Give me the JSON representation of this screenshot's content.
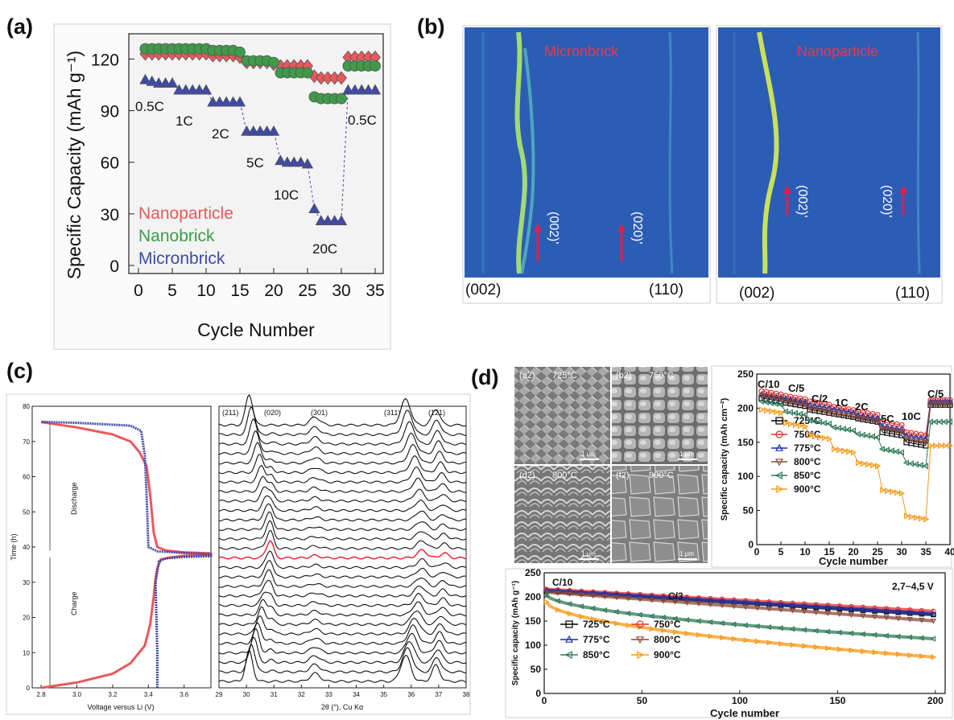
{
  "panels": [
    {
      "label": "(a)"
    },
    {
      "label": "(b)"
    },
    {
      "label": "(c)"
    },
    {
      "label": "(d)"
    }
  ],
  "colors": {
    "red": "#e8595c",
    "green": "#3f9a4a",
    "blue": "#3f4aa8",
    "b725": "#000000",
    "b750": "#e8302a",
    "b775": "#1b2fa8",
    "b800": "#8a4a3a",
    "b850": "#2f7a5a",
    "b900": "#f59a1a"
  },
  "panel_b": {
    "left_title": "Micronbrick",
    "right_title": "Nanoparticle",
    "left_bottom": [
      "(002)",
      "(110)"
    ],
    "right_bottom": [
      "(002)",
      "(110)"
    ],
    "arrow_labels": [
      "(002)'",
      "(020)'"
    ]
  },
  "panel_c": {
    "left_texts": [
      "Discharge",
      "Charge"
    ],
    "peak_labels": [
      "(211)",
      "(020)",
      "(301)",
      "(311)",
      "(121)"
    ]
  },
  "panel_d_sem": {
    "labels": [
      "(a2)",
      "725°C",
      "(b2)",
      "750°C",
      "(d2)",
      "800°C",
      "(f2)",
      "900°C"
    ],
    "scale": "1 μm"
  },
  "chart_data": [
    {
      "id": "a",
      "type": "scatter",
      "xlabel": "Cycle Number",
      "ylabel": "Specific Capacity (mAh g⁻¹)",
      "xlim": [
        0,
        35
      ],
      "ylim": [
        0,
        130
      ],
      "xticks": [
        0,
        5,
        10,
        15,
        20,
        25,
        30,
        35
      ],
      "yticks": [
        0,
        30,
        60,
        90,
        120
      ],
      "legend": [
        "Nanoparticle",
        "Nanobrick",
        "Micronbrick"
      ],
      "annotations": [
        "0.5C",
        "1C",
        "2C",
        "5C",
        "10C",
        "20C",
        "0.5C"
      ],
      "series": [
        {
          "name": "Nanoparticle",
          "color_key": "red",
          "marker": "diamond",
          "x": [
            1,
            2,
            3,
            4,
            5,
            6,
            7,
            8,
            9,
            10,
            11,
            12,
            13,
            14,
            15,
            16,
            17,
            18,
            19,
            20,
            21,
            22,
            23,
            24,
            25,
            26,
            27,
            28,
            29,
            30,
            31,
            32,
            33,
            34,
            35
          ],
          "y": [
            123,
            123,
            123,
            123,
            123,
            123,
            123,
            123,
            123,
            123,
            122,
            122,
            122,
            122,
            121,
            118,
            118,
            118,
            118,
            117,
            116,
            116,
            116,
            116,
            116,
            110,
            109,
            109,
            109,
            109,
            121,
            121,
            121,
            121,
            121
          ]
        },
        {
          "name": "Nanobrick",
          "color_key": "green",
          "marker": "circle",
          "x": [
            1,
            2,
            3,
            4,
            5,
            6,
            7,
            8,
            9,
            10,
            11,
            12,
            13,
            14,
            15,
            16,
            17,
            18,
            19,
            20,
            21,
            22,
            23,
            24,
            25,
            26,
            27,
            28,
            29,
            30,
            31,
            32,
            33,
            34,
            35
          ],
          "y": [
            126,
            126,
            126,
            126,
            126,
            126,
            126,
            126,
            126,
            126,
            125,
            125,
            125,
            125,
            124,
            119,
            119,
            119,
            119,
            118,
            112,
            112,
            112,
            112,
            112,
            98,
            97,
            97,
            97,
            97,
            116,
            116,
            116,
            116,
            116
          ]
        },
        {
          "name": "Micronbrick",
          "color_key": "blue",
          "marker": "triangle",
          "x": [
            1,
            2,
            3,
            4,
            5,
            6,
            7,
            8,
            9,
            10,
            11,
            12,
            13,
            14,
            15,
            16,
            17,
            18,
            19,
            20,
            21,
            22,
            23,
            24,
            25,
            26,
            27,
            28,
            29,
            30,
            31,
            32,
            33,
            34,
            35
          ],
          "y": [
            108,
            107,
            106,
            106,
            106,
            102,
            102,
            102,
            102,
            102,
            95,
            95,
            95,
            95,
            95,
            78,
            78,
            78,
            78,
            78,
            61,
            60,
            60,
            60,
            59,
            33,
            26,
            26,
            26,
            26,
            102,
            102,
            102,
            102,
            102
          ]
        }
      ]
    },
    {
      "id": "c_left",
      "type": "line",
      "xlabel": "Voltage versus Li (V)",
      "ylabel": "Time (h)",
      "xlim": [
        2.75,
        3.75
      ],
      "ylim": [
        0,
        80
      ],
      "xticks": [
        2.8,
        3.0,
        3.2,
        3.4,
        3.6
      ],
      "yticks": [
        0,
        10,
        20,
        30,
        40,
        50,
        60,
        70,
        80
      ],
      "series": [
        {
          "name": "",
          "color_key": "red",
          "x": [
            2.8,
            3.0,
            3.2,
            3.3,
            3.38,
            3.41,
            3.43,
            3.44,
            3.45,
            3.47,
            3.52,
            3.6,
            3.75,
            3.75,
            3.6,
            3.5,
            3.45,
            3.43,
            3.41,
            3.39,
            3.35,
            3.3,
            3.2,
            3.0,
            2.8
          ],
          "y": [
            0,
            1.5,
            4,
            7,
            12,
            18,
            26,
            31,
            34,
            36.5,
            37,
            37.5,
            37.8,
            38.2,
            38.5,
            39,
            40,
            44,
            55,
            63,
            67,
            70,
            72,
            74,
            75.5
          ]
        },
        {
          "name": "",
          "color_key": "blue",
          "x": [
            3.45,
            3.45,
            3.44,
            3.46,
            3.5,
            3.6,
            3.75,
            3.75,
            3.6,
            3.45,
            3.4,
            3.39,
            3.38,
            3.36,
            3.3,
            3.0,
            2.8
          ],
          "y": [
            0,
            10,
            30,
            36,
            36.8,
            37.2,
            37.4,
            38,
            38.3,
            38.8,
            40,
            55,
            66,
            73,
            74.5,
            75.3,
            75.6
          ]
        }
      ]
    },
    {
      "id": "c_right",
      "type": "line",
      "xlabel": "2θ (°), Cu Kα",
      "xlim": [
        29,
        38
      ],
      "xticks": [
        29,
        30,
        31,
        32,
        33,
        34,
        35,
        36,
        37,
        38
      ],
      "peaks": [
        30.1,
        30.9,
        32.5,
        35.8,
        36.9
      ],
      "traces": 28,
      "highlight_trace": 13
    },
    {
      "id": "d_rate",
      "type": "line",
      "xlabel": "Cycle number",
      "ylabel": "Specific capacity (mAh cm⁻²)",
      "xlim": [
        0,
        40
      ],
      "ylim": [
        0,
        250
      ],
      "xticks": [
        0,
        5,
        10,
        15,
        20,
        25,
        30,
        35,
        40
      ],
      "yticks": [
        0,
        50,
        100,
        150,
        200,
        250
      ],
      "annotations": [
        "C/10",
        "C/5",
        "C/2",
        "1C",
        "2C",
        "5C",
        "10C",
        "C/5"
      ],
      "series": [
        {
          "name": "725°C",
          "color_key": "b725",
          "marker": "square",
          "levels": [
            215,
            208,
            198,
            192,
            185,
            165,
            150,
            205
          ]
        },
        {
          "name": "750°C",
          "color_key": "b750",
          "marker": "circle",
          "levels": [
            225,
            218,
            210,
            202,
            195,
            180,
            165,
            212
          ]
        },
        {
          "name": "775°C",
          "color_key": "b775",
          "marker": "triangle",
          "levels": [
            220,
            214,
            205,
            198,
            190,
            174,
            160,
            210
          ]
        },
        {
          "name": "800°C",
          "color_key": "b800",
          "marker": "triangle-down",
          "levels": [
            218,
            210,
            200,
            193,
            186,
            170,
            155,
            206
          ]
        },
        {
          "name": "850°C",
          "color_key": "b850",
          "marker": "triangle-left",
          "levels": [
            210,
            195,
            182,
            172,
            162,
            140,
            120,
            180
          ]
        },
        {
          "name": "900°C",
          "color_key": "b900",
          "marker": "triangle-right",
          "levels": [
            198,
            178,
            160,
            140,
            120,
            80,
            42,
            145
          ]
        }
      ]
    },
    {
      "id": "d_cycle",
      "type": "line",
      "xlabel": "Cycle number",
      "ylabel": "Specific capacity (mAh g⁻¹)",
      "xlim": [
        0,
        205
      ],
      "ylim": [
        0,
        250
      ],
      "xticks": [
        0,
        50,
        100,
        150,
        200
      ],
      "yticks": [
        0,
        50,
        100,
        150,
        200,
        250
      ],
      "annotations": [
        "C/10",
        "C/3",
        "2,7~4,5 V"
      ],
      "series": [
        {
          "name": "725°C",
          "color_key": "b725",
          "marker": "square",
          "start": 212,
          "end": 163
        },
        {
          "name": "750°C",
          "color_key": "b750",
          "marker": "circle",
          "start": 216,
          "end": 170
        },
        {
          "name": "775°C",
          "color_key": "b775",
          "marker": "triangle",
          "start": 214,
          "end": 165
        },
        {
          "name": "800°C",
          "color_key": "b800",
          "marker": "triangle-down",
          "start": 210,
          "end": 150
        },
        {
          "name": "850°C",
          "color_key": "b850",
          "marker": "triangle-left",
          "start": 205,
          "end": 113
        },
        {
          "name": "900°C",
          "color_key": "b900",
          "marker": "triangle-right",
          "start": 190,
          "end": 75
        }
      ]
    }
  ]
}
